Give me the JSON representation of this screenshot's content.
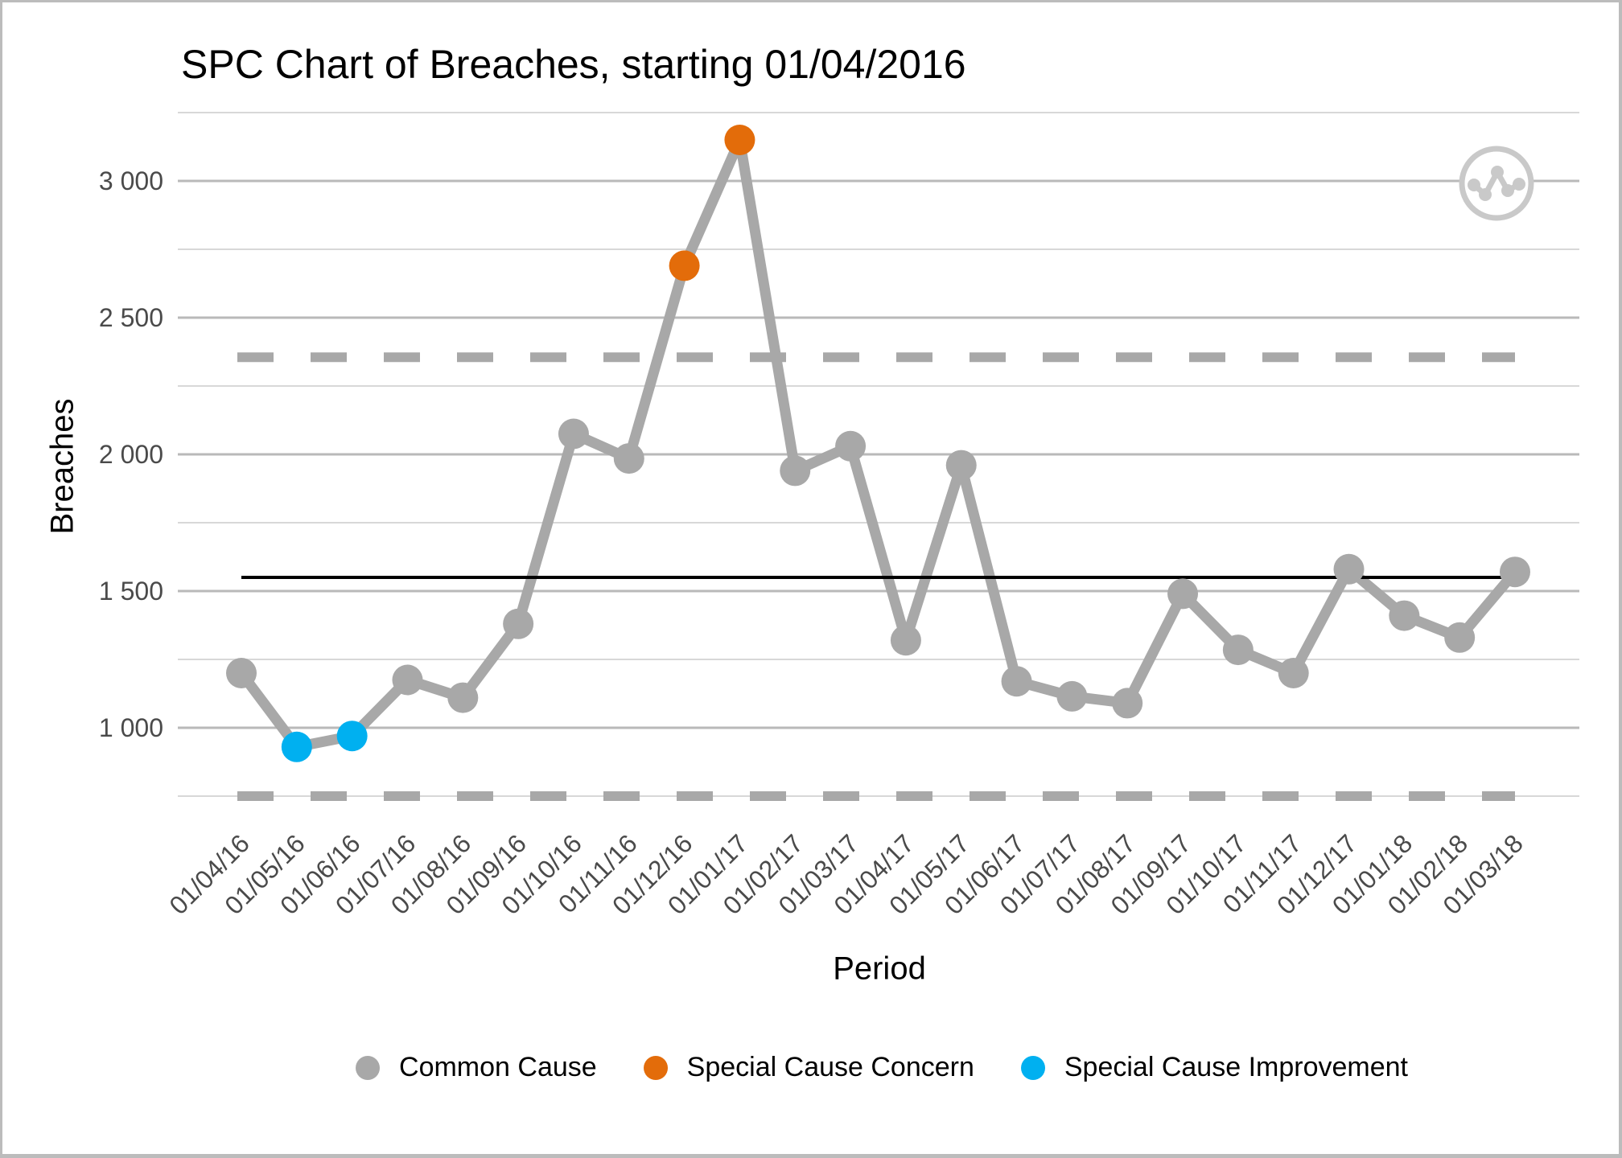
{
  "chart_data": {
    "type": "line",
    "title": "SPC Chart of Breaches, starting 01/04/2016",
    "xlabel": "Period",
    "ylabel": "Breaches",
    "categories": [
      "01/04/16",
      "01/05/16",
      "01/06/16",
      "01/07/16",
      "01/08/16",
      "01/09/16",
      "01/10/16",
      "01/11/16",
      "01/12/16",
      "01/01/17",
      "01/02/17",
      "01/03/17",
      "01/04/17",
      "01/05/17",
      "01/06/17",
      "01/07/17",
      "01/08/17",
      "01/09/17",
      "01/10/17",
      "01/11/17",
      "01/12/17",
      "01/01/18",
      "01/02/18",
      "01/03/18"
    ],
    "series": [
      {
        "name": "Breaches",
        "values": [
          1200,
          930,
          970,
          1175,
          1110,
          1380,
          2075,
          1985,
          2690,
          3150,
          1940,
          2030,
          1320,
          1960,
          1170,
          1115,
          1090,
          1490,
          1285,
          1200,
          1580,
          1410,
          1330,
          1570
        ],
        "point_types": [
          "common",
          "improvement",
          "improvement",
          "common",
          "common",
          "common",
          "common",
          "common",
          "concern",
          "concern",
          "common",
          "common",
          "common",
          "common",
          "common",
          "common",
          "common",
          "common",
          "common",
          "common",
          "common",
          "common",
          "common",
          "common"
        ]
      }
    ],
    "control_lines": {
      "center": 1550,
      "upper": 2355,
      "lower": 750,
      "center_style": "solid",
      "limit_style": "dashed"
    },
    "y_ticks": [
      {
        "value": 1000,
        "label": "1 000"
      },
      {
        "value": 1500,
        "label": "1 500"
      },
      {
        "value": 2000,
        "label": "2 000"
      },
      {
        "value": 2500,
        "label": "2 500"
      },
      {
        "value": 3000,
        "label": "3 000"
      }
    ],
    "y_minor_ticks": [
      750,
      1250,
      1750,
      2250,
      2750,
      3250
    ],
    "ylim": [
      620,
      3350
    ],
    "grid": true,
    "x_tick_angle": 45,
    "legend_position": "bottom",
    "legend": [
      {
        "label": "Common Cause",
        "color": "#a8a8a8"
      },
      {
        "label": "Special Cause Concern",
        "color": "#e36c0a"
      },
      {
        "label": "Special Cause Improvement",
        "color": "#00b0f0"
      }
    ],
    "colors": {
      "series_line": "#a8a8a8",
      "common": "#a8a8a8",
      "concern": "#e36c0a",
      "improvement": "#00b0f0",
      "grid_major": "#b9b9b9",
      "grid_minor": "#d8d8d8",
      "control_limit": "#a8a8a8",
      "center_line": "#000000",
      "axis_text": "#4a4a4a",
      "title_text": "#000000"
    }
  },
  "logo": {
    "icon": "line-chart-icon",
    "color": "#c9c9c9"
  }
}
